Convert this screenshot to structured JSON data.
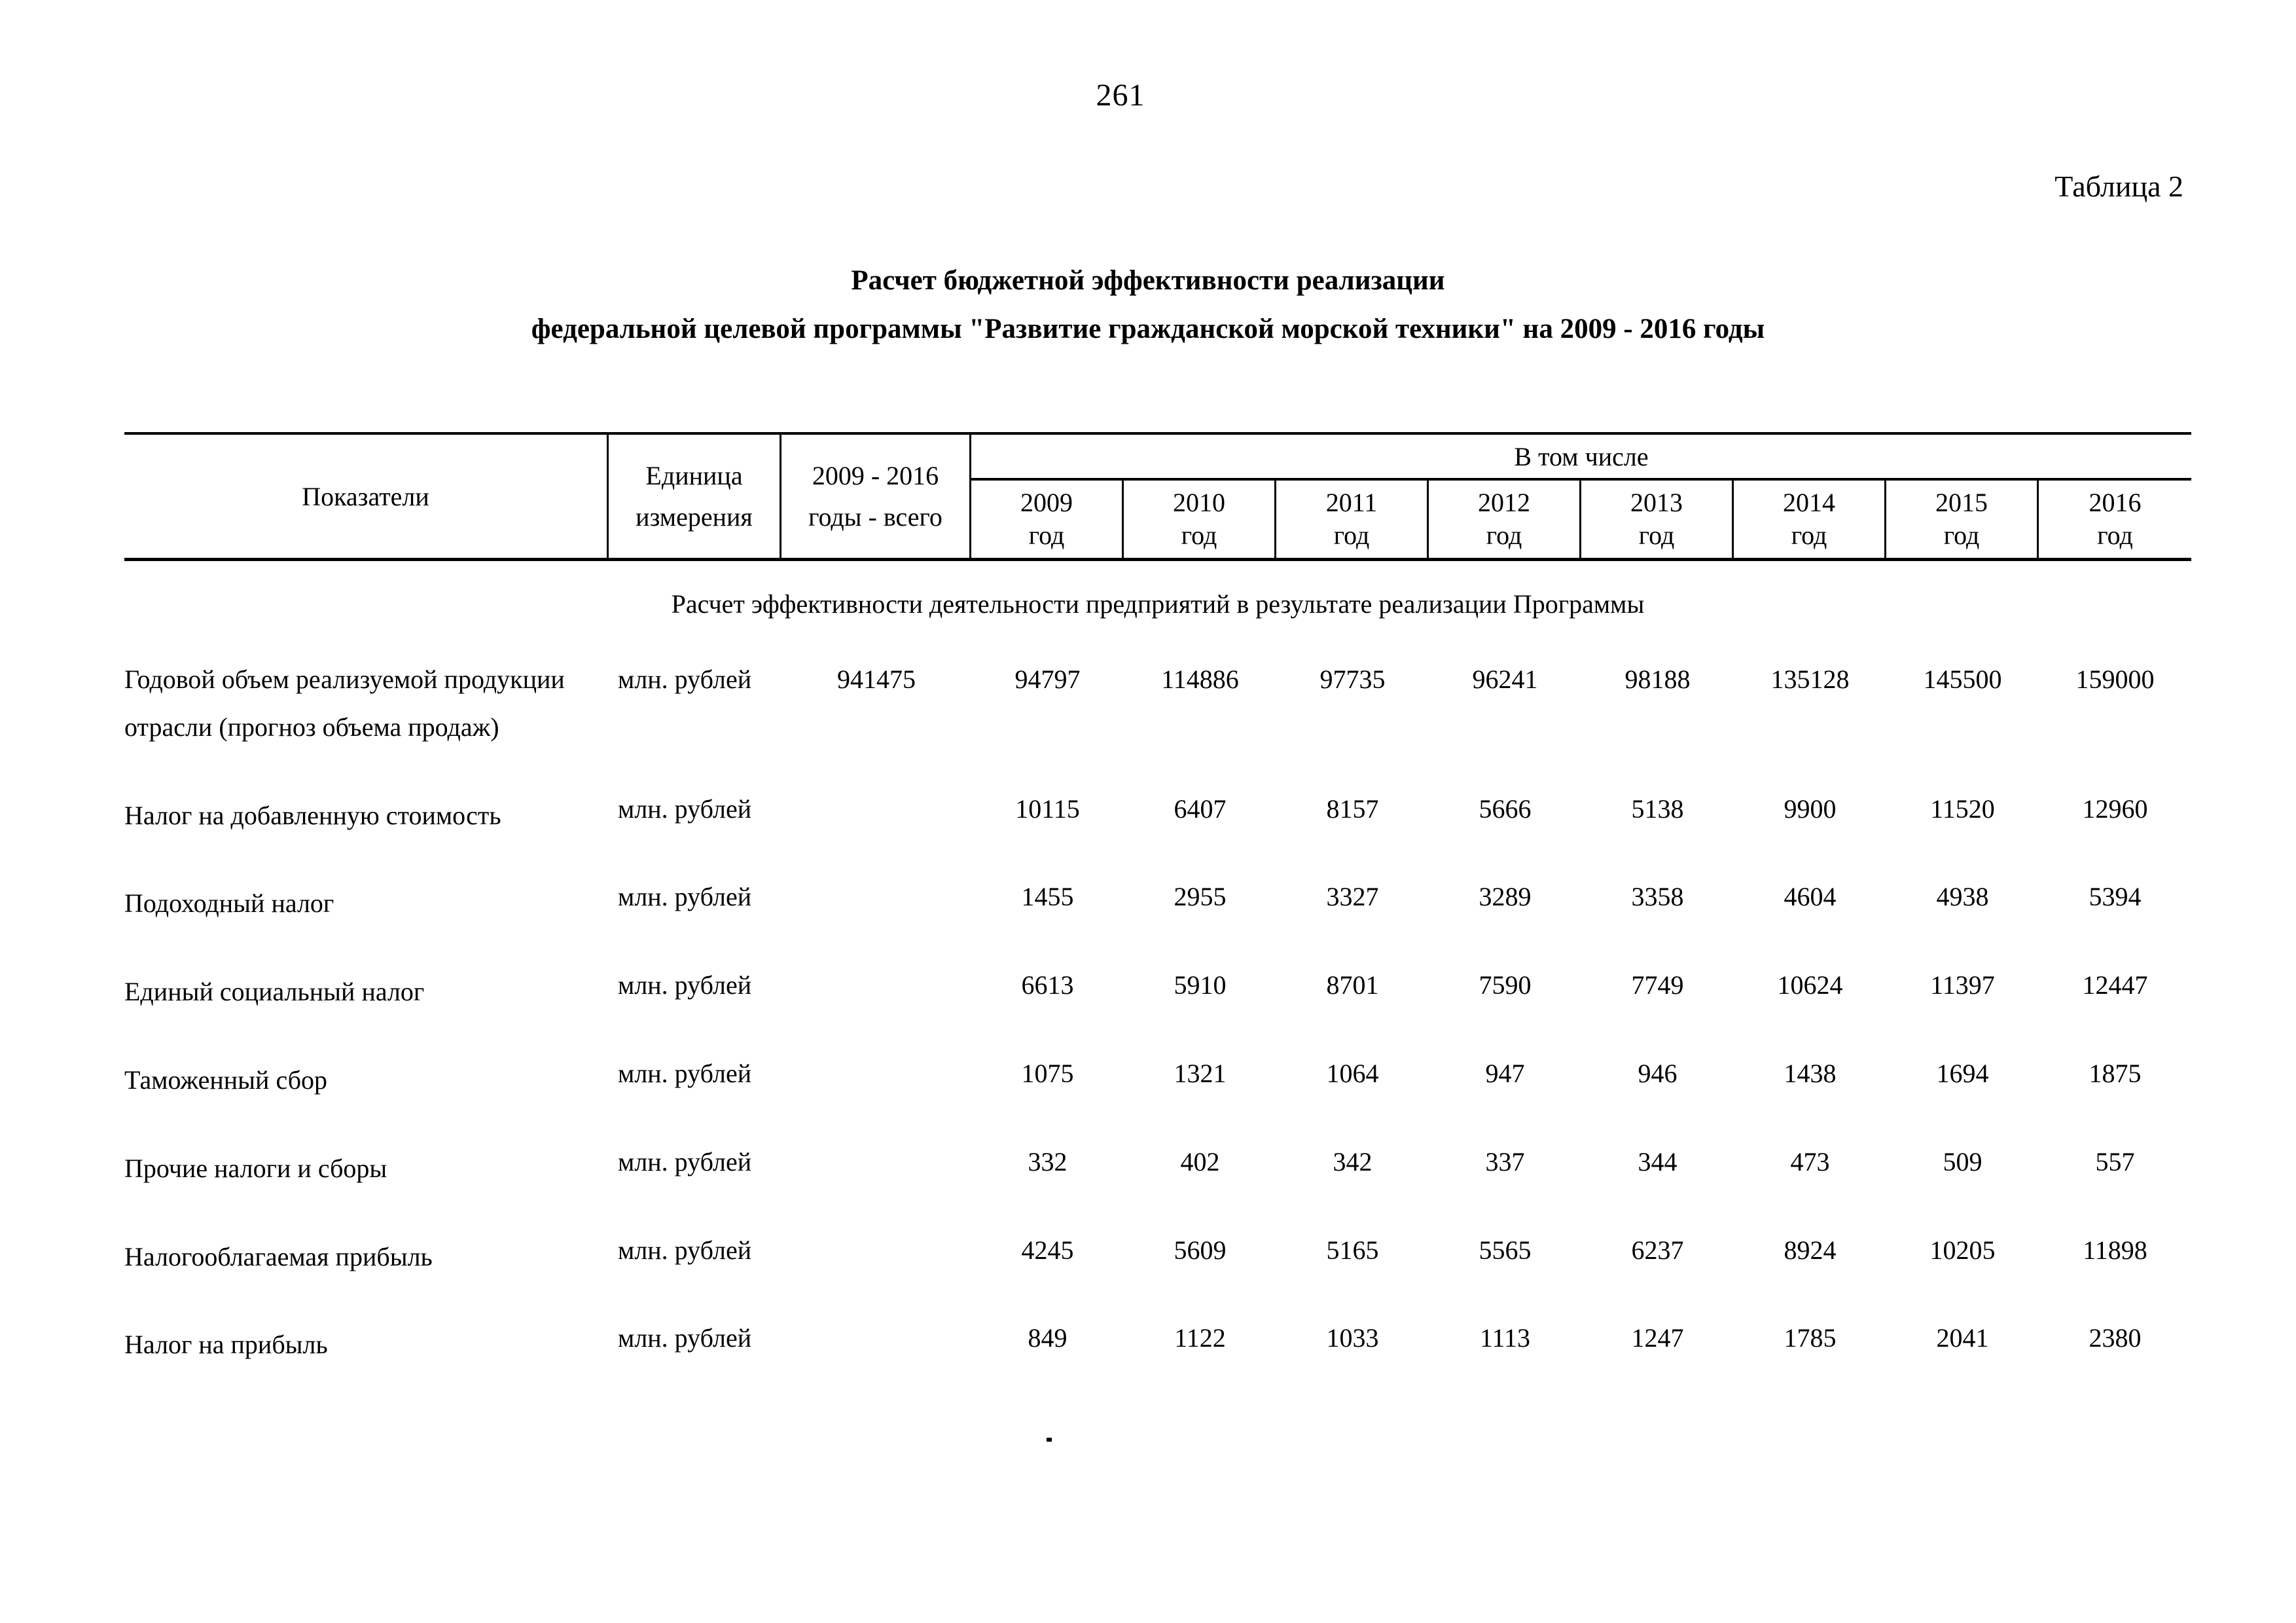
{
  "page": {
    "number": "261",
    "caption": "Таблица 2"
  },
  "title": {
    "line1": "Расчет бюджетной эффективности реализации",
    "line2": "федеральной целевой программы \"Развитие гражданской морской техники\" на 2009 - 2016 годы"
  },
  "table": {
    "headers": {
      "indicators": "Показатели",
      "unit_line1": "Единица",
      "unit_line2": "измерения",
      "total_line1": "2009 - 2016",
      "total_line2": "годы - всего",
      "including_label": "В том числе",
      "year_word": "год",
      "years": [
        "2009",
        "2010",
        "2011",
        "2012",
        "2013",
        "2014",
        "2015",
        "2016"
      ]
    },
    "section_title": "Расчет эффективности деятельности предприятий в результате реализации Программы",
    "rows": [
      {
        "indicator": "Годовой объем реализуемой продукции отрасли (прогноз объема продаж)",
        "unit": "млн. рублей",
        "total": "941475",
        "values": [
          "94797",
          "114886",
          "97735",
          "96241",
          "98188",
          "135128",
          "145500",
          "159000"
        ]
      },
      {
        "indicator": "Налог на добавленную стоимость",
        "unit": "млн. рублей",
        "total": "",
        "values": [
          "10115",
          "6407",
          "8157",
          "5666",
          "5138",
          "9900",
          "11520",
          "12960"
        ]
      },
      {
        "indicator": "Подоходный налог",
        "unit": "млн. рублей",
        "total": "",
        "values": [
          "1455",
          "2955",
          "3327",
          "3289",
          "3358",
          "4604",
          "4938",
          "5394"
        ]
      },
      {
        "indicator": "Единый социальный налог",
        "unit": "млн. рублей",
        "total": "",
        "values": [
          "6613",
          "5910",
          "8701",
          "7590",
          "7749",
          "10624",
          "11397",
          "12447"
        ]
      },
      {
        "indicator": "Таможенный сбор",
        "unit": "млн. рублей",
        "total": "",
        "values": [
          "1075",
          "1321",
          "1064",
          "947",
          "946",
          "1438",
          "1694",
          "1875"
        ]
      },
      {
        "indicator": "Прочие налоги и сборы",
        "unit": "млн. рублей",
        "total": "",
        "values": [
          "332",
          "402",
          "342",
          "337",
          "344",
          "473",
          "509",
          "557"
        ]
      },
      {
        "indicator": "Налогооблагаемая прибыль",
        "unit": "млн. рублей",
        "total": "",
        "values": [
          "4245",
          "5609",
          "5165",
          "5565",
          "6237",
          "8924",
          "10205",
          "11898"
        ]
      },
      {
        "indicator": "Налог на прибыль",
        "unit": "млн. рублей",
        "total": "",
        "values": [
          "849",
          "1122",
          "1033",
          "1113",
          "1247",
          "1785",
          "2041",
          "2380"
        ]
      }
    ]
  }
}
